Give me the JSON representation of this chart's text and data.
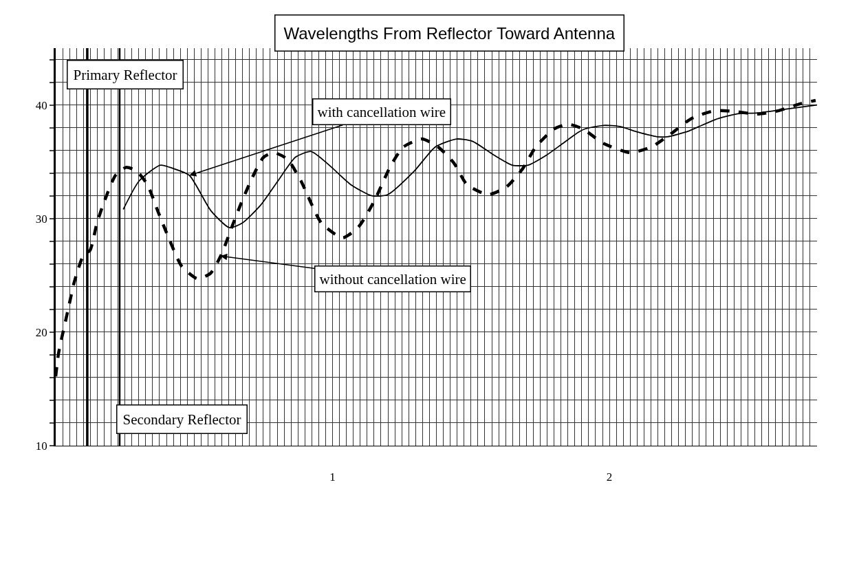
{
  "chart_data": {
    "type": "line",
    "title": "Wavelengths From Reflector Toward Antenna",
    "xlim": [
      0,
      2.75
    ],
    "ylim": [
      10,
      45
    ],
    "grid": true,
    "xticks": [
      {
        "value": 0,
        "label": null
      },
      {
        "value": 0.025,
        "label": null
      },
      {
        "value": 0.05,
        "label": null
      },
      {
        "value": 0.075,
        "label": null
      },
      {
        "value": 0.1,
        "label": null
      },
      {
        "value": 0.125,
        "label": null
      },
      {
        "value": 0.15,
        "label": null
      },
      {
        "value": 0.175,
        "label": null
      },
      {
        "value": 0.2,
        "label": null
      },
      {
        "value": 0.225,
        "label": null
      },
      {
        "value": 0.25,
        "label": null
      },
      {
        "value": 0.275,
        "label": null
      },
      {
        "value": 0.3,
        "label": null
      },
      {
        "value": 0.325,
        "label": null
      },
      {
        "value": 0.35,
        "label": null
      },
      {
        "value": 0.375,
        "label": null
      },
      {
        "value": 0.4,
        "label": null
      },
      {
        "value": 0.425,
        "label": null
      },
      {
        "value": 0.45,
        "label": null
      },
      {
        "value": 0.475,
        "label": null
      },
      {
        "value": 0.5,
        "label": null
      },
      {
        "value": 0.525,
        "label": null
      },
      {
        "value": 0.55,
        "label": null
      },
      {
        "value": 0.575,
        "label": null
      },
      {
        "value": 0.6,
        "label": null
      },
      {
        "value": 0.625,
        "label": null
      },
      {
        "value": 0.65,
        "label": null
      },
      {
        "value": 0.675,
        "label": null
      },
      {
        "value": 0.7,
        "label": null
      },
      {
        "value": 0.725,
        "label": null
      },
      {
        "value": 0.75,
        "label": null
      },
      {
        "value": 0.775,
        "label": null
      },
      {
        "value": 0.8,
        "label": null
      },
      {
        "value": 0.825,
        "label": null
      },
      {
        "value": 0.85,
        "label": null
      },
      {
        "value": 0.875,
        "label": null
      },
      {
        "value": 0.9,
        "label": null
      },
      {
        "value": 0.925,
        "label": null
      },
      {
        "value": 0.95,
        "label": null
      },
      {
        "value": 0.975,
        "label": null
      },
      1,
      {
        "value": 1.025,
        "label": null
      },
      {
        "value": 1.05,
        "label": null
      },
      {
        "value": 1.075,
        "label": null
      },
      {
        "value": 1.1,
        "label": null
      },
      {
        "value": 1.125,
        "label": null
      },
      {
        "value": 1.15,
        "label": null
      },
      {
        "value": 1.175,
        "label": null
      },
      {
        "value": 1.2,
        "label": null
      },
      {
        "value": 1.225,
        "label": null
      },
      {
        "value": 1.25,
        "label": null
      },
      {
        "value": 1.275,
        "label": null
      },
      {
        "value": 1.3,
        "label": null
      },
      {
        "value": 1.325,
        "label": null
      },
      {
        "value": 1.35,
        "label": null
      },
      {
        "value": 1.375,
        "label": null
      },
      {
        "value": 1.4,
        "label": null
      },
      {
        "value": 1.425,
        "label": null
      },
      {
        "value": 1.45,
        "label": null
      },
      {
        "value": 1.475,
        "label": null
      },
      {
        "value": 1.5,
        "label": null
      },
      {
        "value": 1.525,
        "label": null
      },
      {
        "value": 1.55,
        "label": null
      },
      {
        "value": 1.575,
        "label": null
      },
      {
        "value": 1.6,
        "label": null
      },
      {
        "value": 1.625,
        "label": null
      },
      {
        "value": 1.65,
        "label": null
      },
      {
        "value": 1.675,
        "label": null
      },
      {
        "value": 1.7,
        "label": null
      },
      {
        "value": 1.725,
        "label": null
      },
      {
        "value": 1.75,
        "label": null
      },
      {
        "value": 1.775,
        "label": null
      },
      {
        "value": 1.8,
        "label": null
      },
      {
        "value": 1.825,
        "label": null
      },
      {
        "value": 1.85,
        "label": null
      },
      {
        "value": 1.875,
        "label": null
      },
      {
        "value": 1.9,
        "label": null
      },
      {
        "value": 1.925,
        "label": null
      },
      {
        "value": 1.95,
        "label": null
      },
      {
        "value": 1.975,
        "label": null
      },
      2,
      {
        "value": 2.025,
        "label": null
      },
      {
        "value": 2.05,
        "label": null
      },
      {
        "value": 2.075,
        "label": null
      },
      {
        "value": 2.1,
        "label": null
      },
      {
        "value": 2.125,
        "label": null
      },
      {
        "value": 2.15,
        "label": null
      },
      {
        "value": 2.175,
        "label": null
      },
      {
        "value": 2.2,
        "label": null
      },
      {
        "value": 2.225,
        "label": null
      },
      {
        "value": 2.25,
        "label": null
      },
      {
        "value": 2.275,
        "label": null
      },
      {
        "value": 2.3,
        "label": null
      },
      {
        "value": 2.325,
        "label": null
      },
      {
        "value": 2.35,
        "label": null
      },
      {
        "value": 2.375,
        "label": null
      },
      {
        "value": 2.4,
        "label": null
      },
      {
        "value": 2.425,
        "label": null
      },
      {
        "value": 2.45,
        "label": null
      },
      {
        "value": 2.475,
        "label": null
      },
      {
        "value": 2.5,
        "label": null
      },
      {
        "value": 2.525,
        "label": null
      },
      {
        "value": 2.55,
        "label": null
      },
      {
        "value": 2.575,
        "label": null
      },
      {
        "value": 2.6,
        "label": null
      },
      {
        "value": 2.625,
        "label": null
      },
      {
        "value": 2.65,
        "label": null
      },
      {
        "value": 2.675,
        "label": null
      },
      {
        "value": 2.7,
        "label": null
      },
      {
        "value": 2.725,
        "label": null
      }
    ],
    "yticks": [
      10,
      {
        "value": 12,
        "label": null
      },
      {
        "value": 14,
        "label": null
      },
      {
        "value": 16,
        "label": null
      },
      {
        "value": 18,
        "label": null
      },
      20,
      {
        "value": 22,
        "label": null
      },
      {
        "value": 24,
        "label": null
      },
      {
        "value": 26,
        "label": null
      },
      {
        "value": 28,
        "label": null
      },
      30,
      {
        "value": 32,
        "label": null
      },
      {
        "value": 34,
        "label": null
      },
      {
        "value": 36,
        "label": null
      },
      {
        "value": 38,
        "label": null
      },
      40,
      {
        "value": 42,
        "label": null
      },
      {
        "value": 44,
        "label": null
      }
    ],
    "series": [
      {
        "color": "#000000",
        "line_style": "dashed",
        "x": [
          0,
          0.01,
          0.044,
          0.067,
          0.101,
          0.124,
          0.149,
          0.177,
          0.216,
          0.254,
          0.291,
          0.331,
          0.368,
          0.408,
          0.455,
          0.512,
          0.56,
          0.598,
          0.637,
          0.674,
          0.714,
          0.751,
          0.789,
          0.838,
          0.886,
          0.96,
          1.037,
          1.095,
          1.152,
          1.209,
          1.256,
          1.323,
          1.381,
          1.438,
          1.485,
          1.562,
          1.629,
          1.687,
          1.734,
          1.801,
          1.852,
          1.903,
          1.98,
          2.075,
          2.152,
          2.219,
          2.296,
          2.381,
          2.458,
          2.535,
          2.612,
          2.689,
          2.745
        ],
        "values": [
          16.1,
          18.1,
          21.9,
          24.4,
          26.8,
          27.2,
          29.6,
          31.6,
          33.8,
          34.5,
          34.2,
          33.0,
          30.7,
          28.3,
          25.8,
          24.7,
          25.2,
          26.8,
          29.3,
          31.6,
          33.8,
          35.4,
          35.8,
          35.2,
          33.3,
          29.6,
          28.3,
          29.3,
          31.6,
          34.6,
          36.3,
          37.0,
          36.3,
          34.9,
          33.0,
          32.1,
          32.8,
          34.4,
          36.3,
          37.9,
          38.3,
          37.9,
          36.6,
          35.8,
          36.3,
          37.4,
          38.8,
          39.5,
          39.4,
          39.2,
          39.5,
          40.1,
          40.4
        ]
      },
      {
        "color": "#000000",
        "line_style": "solid",
        "x": [
          0.244,
          0.301,
          0.378,
          0.425,
          0.483,
          0.56,
          0.627,
          0.674,
          0.741,
          0.808,
          0.866,
          0.923,
          0.988,
          1.065,
          1.142,
          1.199,
          1.296,
          1.371,
          1.448,
          1.505,
          1.582,
          1.649,
          1.706,
          1.774,
          1.831,
          1.888,
          1.913,
          1.98,
          2.037,
          2.104,
          2.172,
          2.209,
          2.286,
          2.381,
          2.458,
          2.535,
          2.629,
          2.75
        ],
        "values": [
          30.8,
          33.3,
          34.7,
          34.4,
          33.8,
          30.7,
          29.2,
          29.6,
          31.2,
          33.5,
          35.4,
          35.9,
          34.7,
          33.0,
          32.0,
          32.1,
          34.2,
          36.3,
          37.0,
          36.8,
          35.6,
          34.7,
          34.7,
          35.6,
          36.6,
          37.6,
          37.9,
          38.2,
          38.1,
          37.6,
          37.2,
          37.2,
          37.7,
          38.7,
          39.2,
          39.3,
          39.6,
          40.0
        ]
      }
    ],
    "ref_lines": [
      {
        "axis": "x",
        "value": 0.114,
        "label": "Primary Reflector"
      },
      {
        "axis": "x",
        "value": 0.231,
        "label": "Secondary Reflector"
      }
    ],
    "annotations": [
      {
        "text": "with cancellation wire",
        "x": 0.483,
        "y": 33.8
      },
      {
        "text": "without cancellation wire",
        "x": 0.595,
        "y": 26.7
      }
    ]
  }
}
